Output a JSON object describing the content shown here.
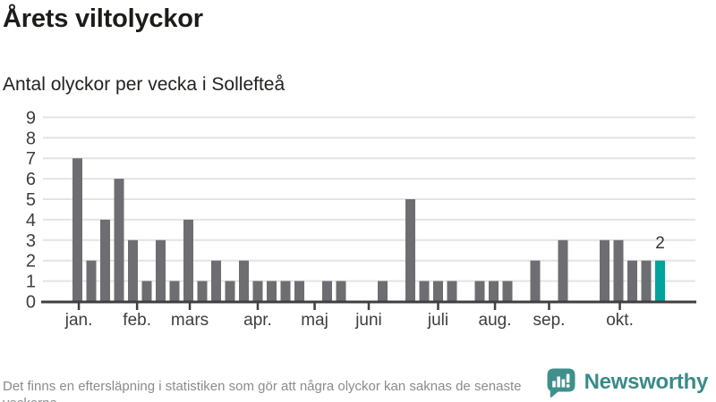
{
  "header": {
    "title": "Årets viltolyckor",
    "subtitle": "Antal olyckor per vecka i Sollefteå"
  },
  "chart_data": {
    "type": "bar",
    "title": "Årets viltolyckor",
    "subtitle": "Antal olyckor per vecka i Sollefteå",
    "x_unit": "vecka (week of year)",
    "x": [
      1,
      2,
      3,
      4,
      5,
      6,
      7,
      8,
      9,
      10,
      11,
      12,
      13,
      14,
      15,
      16,
      17,
      18,
      19,
      20,
      21,
      22,
      23,
      24,
      25,
      26,
      27,
      28,
      29,
      30,
      31,
      32,
      33,
      34,
      35,
      36,
      37,
      38,
      39,
      40,
      41,
      42,
      43
    ],
    "values": [
      7,
      2,
      4,
      6,
      3,
      1,
      3,
      1,
      4,
      1,
      2,
      1,
      2,
      1,
      1,
      1,
      1,
      0,
      1,
      1,
      0,
      0,
      1,
      0,
      5,
      1,
      1,
      1,
      0,
      1,
      1,
      1,
      0,
      2,
      0,
      3,
      0,
      0,
      3,
      3,
      2,
      2,
      2
    ],
    "ylim": [
      0,
      9
    ],
    "yticks": [
      0,
      1,
      2,
      3,
      4,
      5,
      6,
      7,
      8,
      9
    ],
    "grid": "horizontal",
    "legend": "none",
    "month_ticks": [
      {
        "label": "jan.",
        "week": 1.1
      },
      {
        "label": "feb.",
        "week": 5.3
      },
      {
        "label": "mars",
        "week": 9.1
      },
      {
        "label": "apr.",
        "week": 14.0
      },
      {
        "label": "maj",
        "week": 18.1
      },
      {
        "label": "juni",
        "week": 22.0
      },
      {
        "label": "juli",
        "week": 27.0
      },
      {
        "label": "aug.",
        "week": 31.1
      },
      {
        "label": "sep.",
        "week": 35.0
      },
      {
        "label": "okt.",
        "week": 40.1
      }
    ],
    "highlight": {
      "index": 42,
      "label": "2",
      "color": "#00a49c"
    },
    "bar_color": "#6e6d72"
  },
  "colors": {
    "bar": "#6e6d72",
    "highlight": "#00a49c",
    "gridline": "#e4e4e4",
    "axis": "#3f3f42",
    "tick_label": "#3e3e40",
    "value_label": "#333333",
    "muted_text": "#8b8b8f",
    "brand": "#398b88"
  },
  "footer": {
    "disclaimer": "Det finns en eftersläpning i statistiken som gör att några olyckor kan saknas de senaste veckorna."
  },
  "branding": {
    "name": "Newsworthy",
    "icon": "speech-bubble-bar-chart-icon"
  }
}
